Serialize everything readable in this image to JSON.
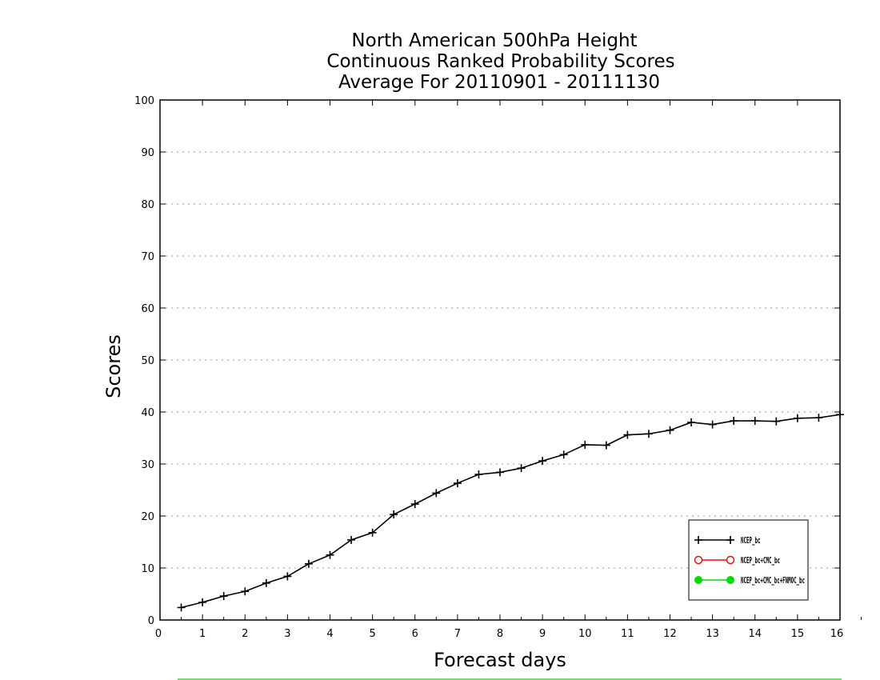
{
  "chart_data": {
    "type": "line",
    "title": [
      "North American 500hPa Height",
      "Continuous Ranked Probability Scores",
      "Average For 20110901 - 20111130"
    ],
    "xlabel": "Forecast days",
    "ylabel": "Scores",
    "xlim": [
      0,
      16
    ],
    "ylim": [
      0,
      100
    ],
    "xticks": [
      0,
      1,
      2,
      3,
      4,
      5,
      6,
      7,
      8,
      9,
      10,
      11,
      12,
      13,
      14,
      15,
      16
    ],
    "yticks": [
      0,
      10,
      20,
      30,
      40,
      50,
      60,
      70,
      80,
      90,
      100
    ],
    "grid": "horizontal dotted",
    "legend_position": "bottom-right",
    "series": [
      {
        "name": "NCEP_bc",
        "color": "#000000",
        "marker": "plus",
        "x": [
          0.5,
          1.0,
          1.5,
          2.0,
          2.5,
          3.0,
          3.5,
          4.0,
          4.5,
          5.0,
          5.5,
          6.0,
          6.5,
          7.0,
          7.5,
          8.0,
          8.5,
          9.0,
          9.5,
          10.0,
          10.5,
          11.0,
          11.5,
          12.0,
          12.5,
          13.0,
          13.5,
          14.0,
          14.5,
          15.0,
          15.5,
          16.0
        ],
        "values": [
          2.4,
          3.4,
          4.6,
          5.5,
          7.1,
          8.4,
          10.8,
          12.5,
          15.4,
          16.8,
          20.3,
          22.3,
          24.4,
          26.3,
          28.0,
          28.4,
          29.2,
          30.6,
          31.8,
          33.7,
          33.6,
          35.6,
          35.8,
          36.5,
          38.0,
          37.6,
          38.3,
          38.3,
          38.2,
          38.8,
          38.9,
          39.5
        ]
      },
      {
        "name": "NCEP_bc+CMC_bc",
        "color": "#ff0000",
        "marker": "open-circle",
        "x": [],
        "values": []
      },
      {
        "name": "NCEP_bc+CMC_bc+FNMOC_bc",
        "color": "#00dd00",
        "marker": "filled-circle",
        "x": [],
        "values": []
      }
    ]
  },
  "colors": {
    "footer_line": "#00aa00",
    "grid": "#999999"
  }
}
